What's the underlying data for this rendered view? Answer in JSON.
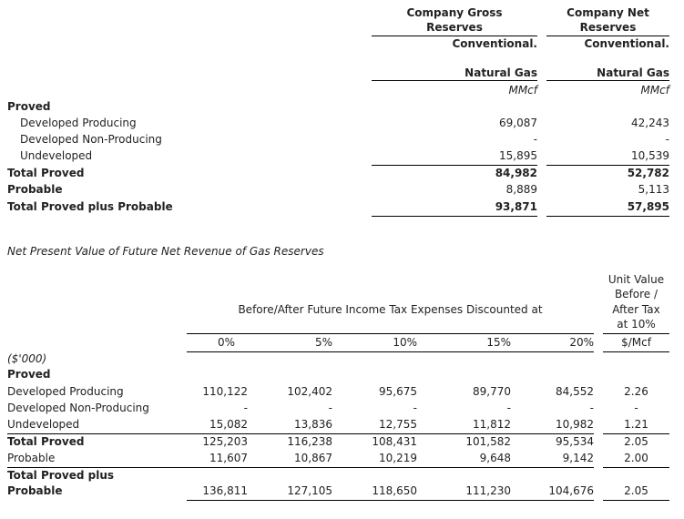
{
  "reserves_table": {
    "columns": [
      {
        "header_line1": "Company Gross",
        "header_line2": "Reserves",
        "type": "Conventional.",
        "product": "Natural Gas",
        "unit": "MMcf"
      },
      {
        "header_line1": "Company Net",
        "header_line2": "Reserves",
        "type": "Conventional.",
        "product": "Natural Gas",
        "unit": "MMcf"
      }
    ],
    "rows": [
      {
        "label": "Proved",
        "bold": true,
        "indent": false,
        "values": [
          "",
          ""
        ]
      },
      {
        "label": "Developed Producing",
        "bold": false,
        "indent": true,
        "values": [
          "69,087",
          "42,243"
        ]
      },
      {
        "label": "Developed Non-Producing",
        "bold": false,
        "indent": true,
        "values": [
          "-",
          "-"
        ]
      },
      {
        "label": "Undeveloped",
        "bold": false,
        "indent": true,
        "values": [
          "15,895",
          "10,539"
        ]
      },
      {
        "label": "Total Proved",
        "bold": true,
        "indent": false,
        "values": [
          "84,982",
          "52,782"
        ]
      },
      {
        "label": "Probable",
        "bold": true,
        "indent": false,
        "values": [
          "8,889",
          "5,113"
        ]
      },
      {
        "label": "Total Proved plus Probable",
        "bold": true,
        "indent": false,
        "values": [
          "93,871",
          "57,895"
        ]
      }
    ]
  },
  "npv_table": {
    "title": "Net Present Value of Future Net Revenue of Gas Reserves",
    "group_header": "Before/After Future Income Tax Expenses Discounted at",
    "unit_value_header": [
      "Unit Value",
      "Before /",
      "After Tax",
      "at 10%"
    ],
    "columns": [
      "0%",
      "5%",
      "10%",
      "15%",
      "20%",
      "$/Mcf"
    ],
    "units_label": "($'000)",
    "rows": [
      {
        "label": "Proved",
        "bold": true,
        "values": []
      },
      {
        "label": "Developed Producing",
        "bold": false,
        "values": [
          "110,122",
          "102,402",
          "95,675",
          "89,770",
          "84,552",
          "2.26"
        ]
      },
      {
        "label": "Developed Non-Producing",
        "bold": false,
        "values": [
          "-",
          "-",
          "-",
          "-",
          "-",
          "-"
        ]
      },
      {
        "label": "Undeveloped",
        "bold": false,
        "values": [
          "15,082",
          "13,836",
          "12,755",
          "11,812",
          "10,982",
          "1.21"
        ]
      },
      {
        "label": "Total Proved",
        "bold": true,
        "values": [
          "125,203",
          "116,238",
          "108,431",
          "101,582",
          "95,534",
          "2.05"
        ]
      },
      {
        "label": "Probable",
        "bold": false,
        "values": [
          "11,607",
          "10,867",
          "10,219",
          "9,648",
          "9,142",
          "2.00"
        ]
      },
      {
        "label": "Total Proved plus Probable",
        "label_line1": "Total Proved plus",
        "label_line2": "Probable",
        "bold": true,
        "values": [
          "136,811",
          "127,105",
          "118,650",
          "111,230",
          "104,676",
          "2.05"
        ]
      }
    ]
  }
}
